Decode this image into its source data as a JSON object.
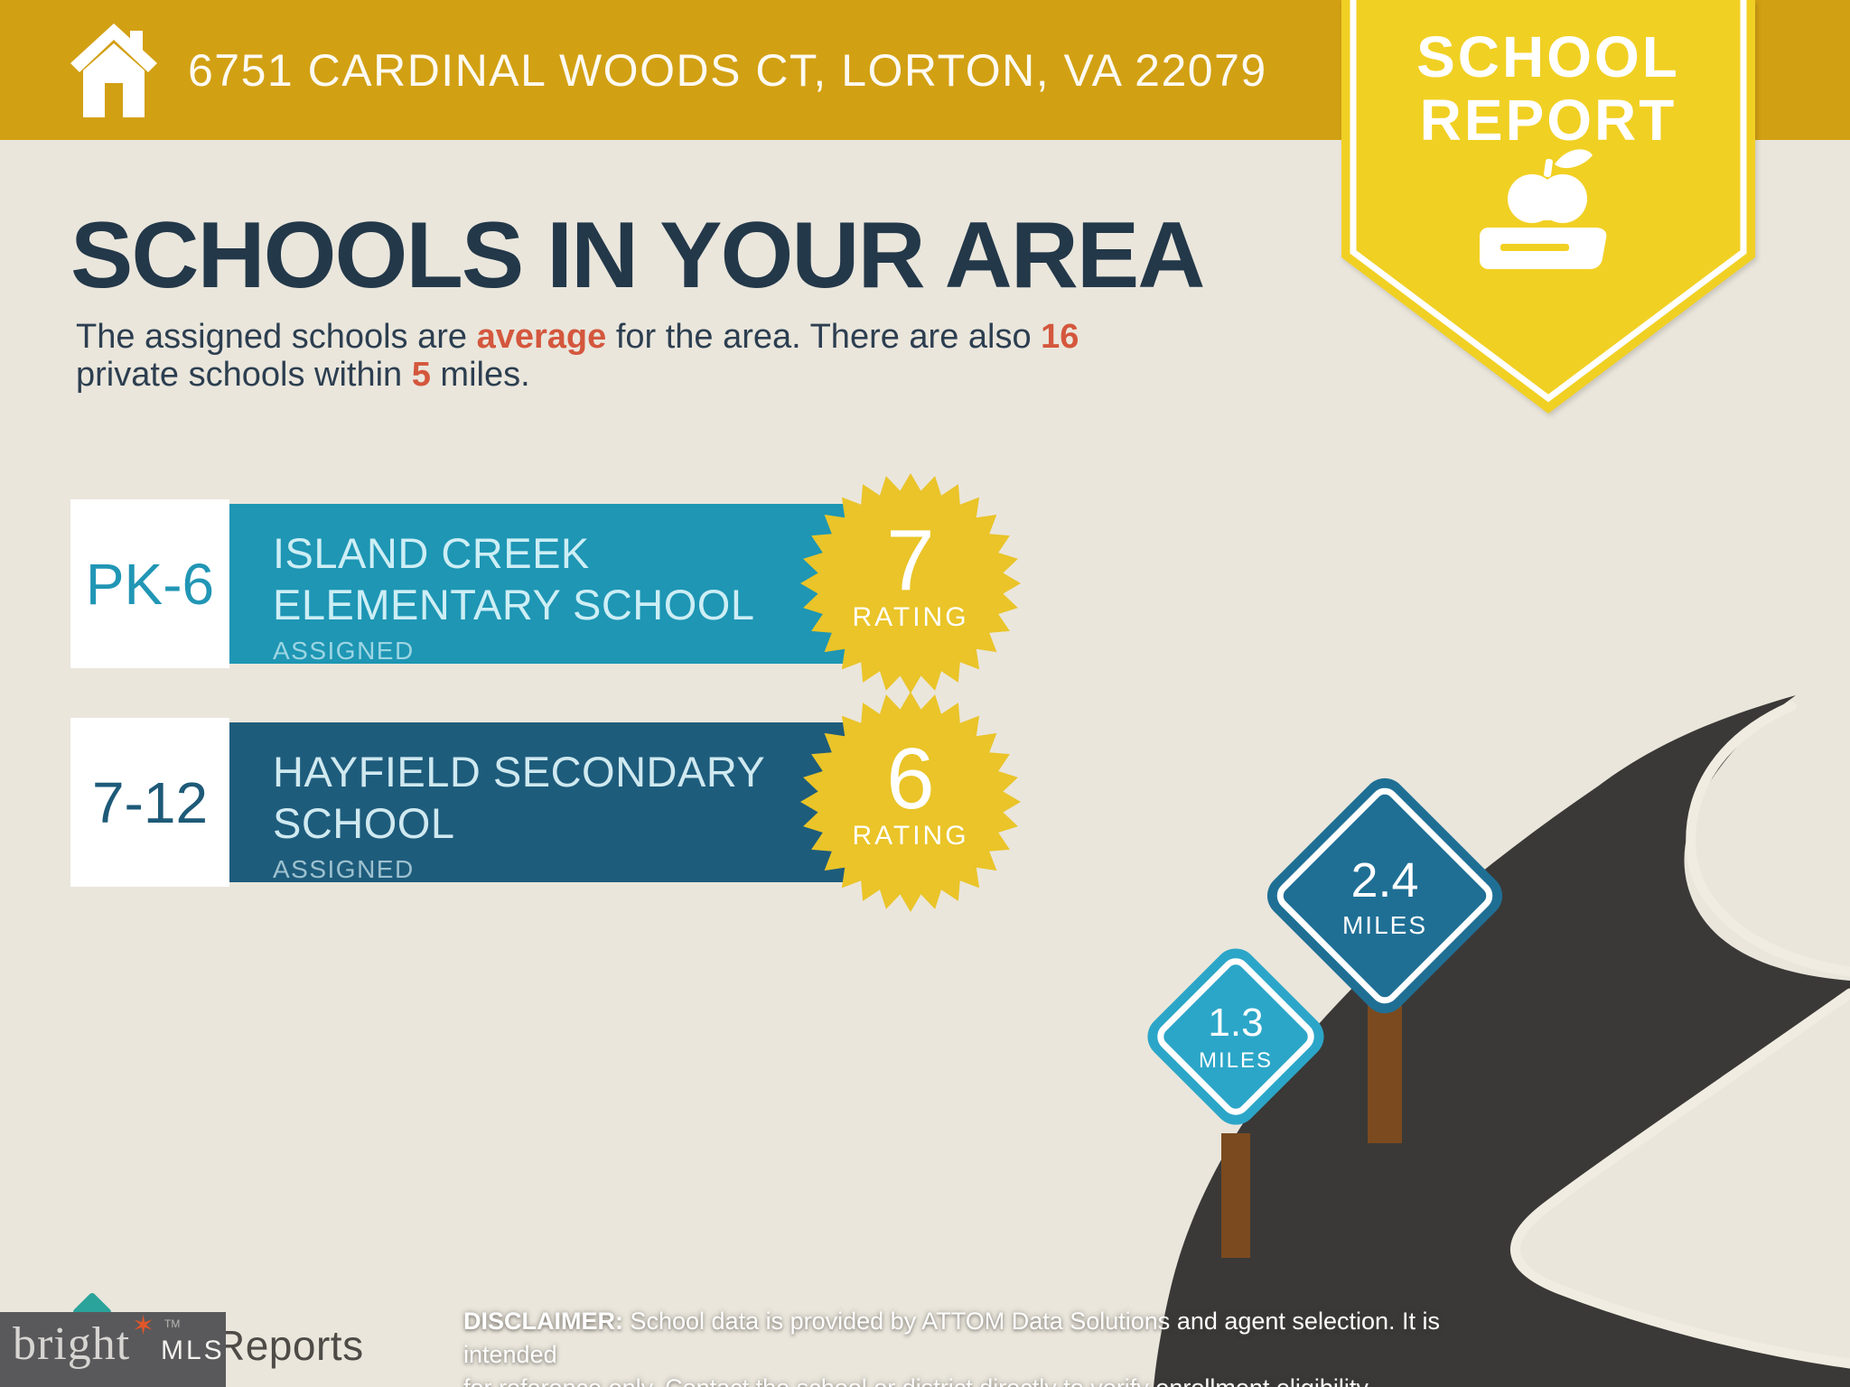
{
  "header": {
    "address": "6751 CARDINAL WOODS CT, LORTON, VA 22079"
  },
  "banner": {
    "line1": "SCHOOL",
    "line2": "REPORT"
  },
  "title": "SCHOOLS IN YOUR AREA",
  "subtitle": {
    "line1_segments": [
      {
        "text": "The assigned schools are ",
        "accent": false
      },
      {
        "text": "average",
        "accent": true
      },
      {
        "text": " for the area. There are also ",
        "accent": false
      },
      {
        "text": "16",
        "accent": true
      }
    ],
    "line2_segments": [
      {
        "text": "private schools within ",
        "accent": false
      },
      {
        "text": "5",
        "accent": true
      },
      {
        "text": " miles.",
        "accent": false
      }
    ]
  },
  "schools": [
    {
      "grades": "PK-6",
      "name_lines": [
        "ISLAND CREEK",
        "ELEMENTARY SCHOOL"
      ],
      "status": "ASSIGNED",
      "rating": "7",
      "rating_label": "RATING",
      "bar_color": "#1e96b4",
      "grade_color": "#2196b5",
      "name_color": "#cdeef5"
    },
    {
      "grades": "7-12",
      "name_lines": [
        "HAYFIELD SECONDARY",
        "SCHOOL"
      ],
      "status": "ASSIGNED",
      "rating": "6",
      "rating_label": "RATING",
      "bar_color": "#1e5c7c",
      "grade_color": "#1e5a78",
      "name_color": "#cfe9f0"
    }
  ],
  "signs": [
    {
      "distance": "2.4",
      "unit": "MILES",
      "color": "#1f6f95"
    },
    {
      "distance": "1.3",
      "unit": "MILES",
      "color": "#2ca6c8"
    }
  ],
  "disclaimer": {
    "line1_segments": [
      {
        "text": "DISCLAIMER:",
        "bold": true
      },
      {
        "text": " School data is provided by ATTOM Data Solutions and agent selection. It is intended",
        "bold": false
      }
    ],
    "line2_segments": [
      {
        "text": "for reference only. Contact the school or district directly to verify enrollment eligibility.",
        "bold": false
      }
    ]
  },
  "footer": {
    "brand": "bright",
    "brand_suffix": "MLS",
    "trademark": "TM",
    "partial_logo_text": "Reports"
  },
  "colors": {
    "header_gold": "#d2a013",
    "pennant_yellow": "#f1d024",
    "badge_yellow": "#eac428",
    "background": "#eae6dc",
    "navy": "#233849",
    "accent_red": "#d4573d",
    "teal_bar": "#1e96b4",
    "dark_blue_bar": "#1e5c7c",
    "road": "#3a3937",
    "post_brown": "#7b4a1f"
  }
}
